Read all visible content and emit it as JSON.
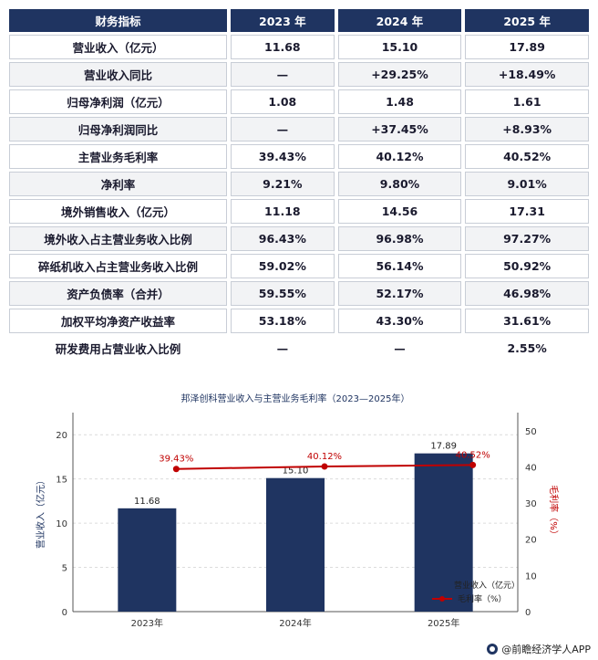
{
  "table": {
    "headers": [
      "财务指标",
      "2023 年",
      "2024 年",
      "2025 年"
    ],
    "rows": [
      [
        "营业收入（亿元）",
        "11.68",
        "15.10",
        "17.89"
      ],
      [
        "营业收入同比",
        "—",
        "+29.25%",
        "+18.49%"
      ],
      [
        "归母净利润（亿元）",
        "1.08",
        "1.48",
        "1.61"
      ],
      [
        "归母净利润同比",
        "—",
        "+37.45%",
        "+8.93%"
      ],
      [
        "主营业务毛利率",
        "39.43%",
        "40.12%",
        "40.52%"
      ],
      [
        "净利率",
        "9.21%",
        "9.80%",
        "9.01%"
      ],
      [
        "境外销售收入（亿元）",
        "11.18",
        "14.56",
        "17.31"
      ],
      [
        "境外收入占主营业务收入比例",
        "96.43%",
        "96.98%",
        "97.27%"
      ],
      [
        "碎纸机收入占主营业务收入比例",
        "59.02%",
        "56.14%",
        "50.92%"
      ],
      [
        "资产负债率（合并）",
        "59.55%",
        "52.17%",
        "46.98%"
      ],
      [
        "加权平均净资产收益率",
        "53.18%",
        "43.30%",
        "31.61%"
      ],
      [
        "研发费用占营业收入比例",
        "—",
        "—",
        "2.55%"
      ]
    ]
  },
  "chart_data": {
    "type": "bar",
    "title": "邦泽创科营业收入与主营业务毛利率（2023—2025年）",
    "categories": [
      "2023年",
      "2024年",
      "2025年"
    ],
    "series": [
      {
        "name": "营业收入（亿元）",
        "type": "bar",
        "axis": "left",
        "values": [
          11.68,
          15.1,
          17.89
        ],
        "labels": [
          "11.68",
          "15.10",
          "17.89"
        ],
        "color": "#1f3461"
      },
      {
        "name": "毛利率（%）",
        "type": "line",
        "axis": "right",
        "values": [
          39.43,
          40.12,
          40.52
        ],
        "labels": [
          "39.43%",
          "40.12%",
          "40.52%"
        ],
        "color": "#c00000"
      }
    ],
    "ylabel": "营业收入（亿元）",
    "ylim": [
      0,
      22.5
    ],
    "yticks": [
      0,
      5,
      10,
      15,
      20
    ],
    "y2label": "毛利率（%）",
    "y2lim": [
      0,
      55
    ],
    "y2ticks": [
      0,
      10,
      20,
      30,
      40,
      50
    ],
    "grid": true,
    "legend": "bottom-right"
  },
  "footer": {
    "source": "@前瞻经济学人APP"
  },
  "colors": {
    "header_bg": "#1f3461",
    "bar": "#1f3461",
    "line": "#c00000",
    "alt_row": "#f2f3f5"
  }
}
